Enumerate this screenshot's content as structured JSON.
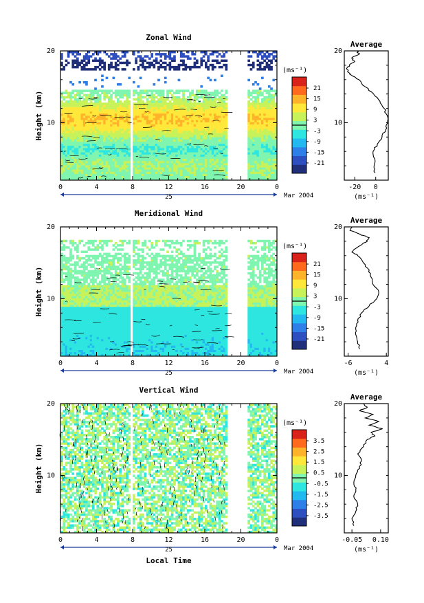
{
  "chart_data": [
    {
      "type": "heatmap",
      "title": "Zonal Wind",
      "ylabel": "Height (km)",
      "x_ticks": [
        "0",
        "4",
        "8",
        "12",
        "16",
        "20",
        "0"
      ],
      "y_ticks": [
        "20",
        "10"
      ],
      "xlim": [
        0,
        24
      ],
      "ylim": [
        2,
        20
      ],
      "date_label": "25",
      "month_label": "Mar 2004",
      "colorbar": {
        "unit_label": "(ms⁻¹)",
        "ticks": [
          "21",
          "15",
          "9",
          "3",
          "-3",
          "-9",
          "-15",
          "-21"
        ],
        "levels": [
          21,
          15,
          9,
          3,
          -3,
          -9,
          -15,
          -21
        ]
      },
      "data_gaps_hours": [
        [
          7.8,
          8.1
        ],
        [
          18.5,
          20.8
        ]
      ],
      "average": {
        "title": "Average",
        "x_ticks": [
          "-20",
          "0"
        ],
        "x_unit": "(ms⁻¹)",
        "y_ticks": [
          "20",
          "10"
        ],
        "xlim": [
          -30,
          12
        ],
        "profile": [
          {
            "h": 3.0,
            "v": -0.5
          },
          {
            "h": 4.0,
            "v": -1.5
          },
          {
            "h": 5.0,
            "v": -1.0
          },
          {
            "h": 6.0,
            "v": -2.5
          },
          {
            "h": 7.0,
            "v": 1.5
          },
          {
            "h": 8.0,
            "v": 6.0
          },
          {
            "h": 9.0,
            "v": 9.5
          },
          {
            "h": 10.0,
            "v": 11.5
          },
          {
            "h": 11.0,
            "v": 11.0
          },
          {
            "h": 12.0,
            "v": 8.0
          },
          {
            "h": 13.0,
            "v": 4.0
          },
          {
            "h": 14.0,
            "v": -2.0
          },
          {
            "h": 15.0,
            "v": -10.0
          },
          {
            "h": 16.0,
            "v": -16.0
          },
          {
            "h": 16.5,
            "v": -22.0
          },
          {
            "h": 17.0,
            "v": -26.0
          },
          {
            "h": 17.5,
            "v": -28.0
          },
          {
            "h": 18.0,
            "v": -25.0
          },
          {
            "h": 18.5,
            "v": -20.0
          },
          {
            "h": 19.0,
            "v": -23.0
          },
          {
            "h": 19.5,
            "v": -16.0
          },
          {
            "h": 20.0,
            "v": -18.0
          }
        ]
      }
    },
    {
      "type": "heatmap",
      "title": "Meridional Wind",
      "ylabel": "Height (km)",
      "x_ticks": [
        "0",
        "4",
        "8",
        "12",
        "16",
        "20",
        "0"
      ],
      "y_ticks": [
        "20",
        "10"
      ],
      "xlim": [
        0,
        24
      ],
      "ylim": [
        2,
        20
      ],
      "date_label": "25",
      "month_label": "Mar 2004",
      "colorbar": {
        "unit_label": "(ms⁻¹)",
        "ticks": [
          "21",
          "15",
          "9",
          "3",
          "-3",
          "-9",
          "-15",
          "-21"
        ],
        "levels": [
          21,
          15,
          9,
          3,
          -3,
          -9,
          -15,
          -21
        ]
      },
      "data_gaps_hours": [
        [
          7.8,
          8.1
        ],
        [
          18.5,
          20.8
        ]
      ],
      "average": {
        "title": "Average",
        "x_ticks": [
          "-6",
          "4"
        ],
        "x_unit": "(ms⁻¹)",
        "y_ticks": [
          "20",
          "10"
        ],
        "xlim": [
          -7,
          4.5
        ],
        "profile": [
          {
            "h": 3.0,
            "v": -3.0
          },
          {
            "h": 4.0,
            "v": -3.5
          },
          {
            "h": 5.0,
            "v": -4.0
          },
          {
            "h": 6.0,
            "v": -4.0
          },
          {
            "h": 7.0,
            "v": -3.5
          },
          {
            "h": 8.0,
            "v": -2.5
          },
          {
            "h": 9.0,
            "v": -0.5
          },
          {
            "h": 10.0,
            "v": 1.5
          },
          {
            "h": 11.0,
            "v": 2.0
          },
          {
            "h": 12.0,
            "v": 0.5
          },
          {
            "h": 13.0,
            "v": 0.0
          },
          {
            "h": 14.0,
            "v": -0.5
          },
          {
            "h": 15.0,
            "v": -2.0
          },
          {
            "h": 16.0,
            "v": -3.5
          },
          {
            "h": 16.5,
            "v": -5.0
          },
          {
            "h": 17.0,
            "v": -4.0
          },
          {
            "h": 17.5,
            "v": -2.5
          },
          {
            "h": 18.0,
            "v": -1.0
          },
          {
            "h": 18.5,
            "v": -0.5
          },
          {
            "h": 19.0,
            "v": -3.0
          },
          {
            "h": 19.5,
            "v": -5.5
          },
          {
            "h": 20.0,
            "v": -5.0
          }
        ]
      }
    },
    {
      "type": "heatmap",
      "title": "Vertical Wind",
      "ylabel": "Height (km)",
      "xlabel": "Local Time",
      "x_ticks": [
        "0",
        "4",
        "8",
        "12",
        "16",
        "20",
        "0"
      ],
      "y_ticks": [
        "20",
        "10"
      ],
      "xlim": [
        0,
        24
      ],
      "ylim": [
        2,
        20
      ],
      "date_label": "25",
      "month_label": "Mar 2004",
      "colorbar": {
        "unit_label": "(ms⁻¹)",
        "ticks": [
          "3.5",
          "2.5",
          "1.5",
          "0.5",
          "-0.5",
          "-1.5",
          "-2.5",
          "-3.5"
        ],
        "levels": [
          3.5,
          2.5,
          1.5,
          0.5,
          -0.5,
          -1.5,
          -2.5,
          -3.5
        ]
      },
      "data_gaps_hours": [
        [
          7.8,
          8.1
        ],
        [
          18.5,
          20.8
        ]
      ],
      "average": {
        "title": "Average",
        "x_ticks": [
          "-0.05",
          "0.10"
        ],
        "x_unit": "(ms⁻¹)",
        "y_ticks": [
          "20",
          "10"
        ],
        "xlim": [
          -0.09,
          0.14
        ],
        "profile": [
          {
            "h": 3.0,
            "v": -0.04
          },
          {
            "h": 4.0,
            "v": -0.05
          },
          {
            "h": 5.0,
            "v": -0.03
          },
          {
            "h": 6.0,
            "v": -0.02
          },
          {
            "h": 7.0,
            "v": -0.04
          },
          {
            "h": 8.0,
            "v": -0.03
          },
          {
            "h": 9.0,
            "v": -0.04
          },
          {
            "h": 10.0,
            "v": -0.03
          },
          {
            "h": 11.0,
            "v": -0.01
          },
          {
            "h": 12.0,
            "v": 0.0
          },
          {
            "h": 13.0,
            "v": -0.02
          },
          {
            "h": 14.0,
            "v": 0.01
          },
          {
            "h": 15.0,
            "v": 0.03
          },
          {
            "h": 15.5,
            "v": 0.07
          },
          {
            "h": 16.0,
            "v": 0.05
          },
          {
            "h": 16.5,
            "v": 0.11
          },
          {
            "h": 17.0,
            "v": 0.04
          },
          {
            "h": 17.5,
            "v": 0.09
          },
          {
            "h": 18.0,
            "v": 0.02
          },
          {
            "h": 18.5,
            "v": 0.06
          },
          {
            "h": 19.0,
            "v": -0.01
          },
          {
            "h": 19.5,
            "v": 0.03
          },
          {
            "h": 20.0,
            "v": 0.01
          }
        ]
      }
    }
  ]
}
